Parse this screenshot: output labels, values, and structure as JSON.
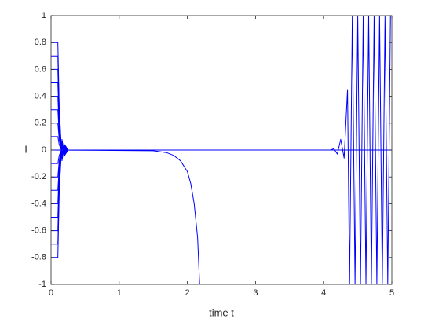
{
  "chart_data": {
    "type": "line",
    "x_label": "time t",
    "y_label": "I",
    "xlim": [
      0,
      5
    ],
    "ylim": [
      -1,
      1
    ],
    "xticks": [
      0,
      1,
      2,
      3,
      4,
      5
    ],
    "yticks": [
      -1,
      -0.8,
      -0.6,
      -0.4,
      -0.2,
      0,
      0.2,
      0.4,
      0.6,
      0.8,
      1
    ],
    "grid": false,
    "series": [
      {
        "color": "#0000ff",
        "x": [
          0,
          0.1,
          0.12,
          0.16,
          0.2,
          0.25,
          5
        ],
        "values": [
          0.8,
          0.8,
          0.32,
          -0.08,
          0.04,
          0,
          0
        ]
      },
      {
        "color": "#0000ff",
        "x": [
          0,
          0.1,
          0.12,
          0.16,
          0.2,
          0.25,
          5
        ],
        "values": [
          0.7,
          0.7,
          0.28,
          -0.07,
          0.035,
          0,
          0
        ]
      },
      {
        "color": "#0000ff",
        "x": [
          0,
          0.1,
          0.12,
          0.16,
          0.2,
          0.25,
          5
        ],
        "values": [
          0.6,
          0.6,
          0.24,
          -0.06,
          0.03,
          0,
          0
        ]
      },
      {
        "color": "#0000ff",
        "x": [
          0,
          0.1,
          0.12,
          0.16,
          0.2,
          0.25,
          5
        ],
        "values": [
          0.5,
          0.5,
          0.2,
          -0.05,
          0.025,
          0,
          0
        ]
      },
      {
        "color": "#0000ff",
        "x": [
          0,
          0.1,
          0.12,
          0.16,
          0.2,
          0.25,
          5
        ],
        "values": [
          0.4,
          0.4,
          0.16,
          -0.04,
          0.02,
          0,
          0
        ]
      },
      {
        "color": "#0000ff",
        "x": [
          0,
          0.1,
          0.12,
          0.16,
          0.2,
          0.25,
          5
        ],
        "values": [
          0.3,
          0.3,
          0.12,
          -0.03,
          0.015,
          0,
          0
        ]
      },
      {
        "color": "#0000ff",
        "x": [
          0,
          0.1,
          0.12,
          0.16,
          0.2,
          0.25,
          5
        ],
        "values": [
          0.2,
          0.2,
          0.08,
          -0.02,
          0.01,
          0,
          0
        ]
      },
      {
        "color": "#0000ff",
        "x": [
          0,
          0.1,
          0.12,
          0.16,
          0.2,
          0.25,
          5
        ],
        "values": [
          0.1,
          0.1,
          0.04,
          -0.01,
          0.005,
          0,
          0
        ]
      },
      {
        "color": "#0000ff",
        "x": [
          0,
          0.1,
          0.12,
          0.16,
          0.2,
          0.25,
          5
        ],
        "values": [
          -0.1,
          -0.1,
          -0.04,
          0.01,
          -0.005,
          0,
          0
        ]
      },
      {
        "color": "#0000ff",
        "x": [
          0,
          0.1,
          0.12,
          0.16,
          0.2,
          0.25,
          5
        ],
        "values": [
          -0.2,
          -0.2,
          -0.08,
          0.02,
          -0.01,
          0,
          0
        ]
      },
      {
        "color": "#0000ff",
        "x": [
          0,
          0.1,
          0.12,
          0.16,
          0.2,
          0.25,
          5
        ],
        "values": [
          -0.3,
          -0.3,
          -0.12,
          0.03,
          -0.015,
          0,
          0
        ]
      },
      {
        "color": "#0000ff",
        "x": [
          0,
          0.1,
          0.12,
          0.16,
          0.2,
          0.25,
          5
        ],
        "values": [
          -0.4,
          -0.4,
          -0.16,
          0.04,
          -0.02,
          0,
          0
        ]
      },
      {
        "color": "#0000ff",
        "x": [
          0,
          0.1,
          0.12,
          0.16,
          0.2,
          0.25,
          5
        ],
        "values": [
          -0.5,
          -0.5,
          -0.2,
          0.05,
          -0.025,
          0,
          0
        ]
      },
      {
        "color": "#0000ff",
        "x": [
          0,
          0.1,
          0.12,
          0.16,
          0.2,
          0.25,
          5
        ],
        "values": [
          -0.6,
          -0.6,
          -0.24,
          0.06,
          -0.03,
          0,
          0
        ]
      },
      {
        "color": "#0000ff",
        "x": [
          0,
          0.1,
          0.12,
          0.16,
          0.2,
          0.25,
          5
        ],
        "values": [
          -0.7,
          -0.7,
          -0.28,
          0.07,
          -0.035,
          0,
          0
        ]
      },
      {
        "color": "#0000ff",
        "x": [
          0,
          0.1,
          0.12,
          0.16,
          0.2,
          0.25,
          5
        ],
        "values": [
          -0.8,
          -0.8,
          -0.32,
          0.08,
          -0.04,
          0,
          0
        ]
      },
      {
        "color": "#0000ff",
        "x": [
          0,
          1.5,
          1.7,
          1.8,
          1.9,
          2.0,
          2.05,
          2.1,
          2.15,
          2.18
        ],
        "values": [
          0,
          -0.005,
          -0.02,
          -0.04,
          -0.08,
          -0.16,
          -0.25,
          -0.4,
          -0.65,
          -1
        ]
      },
      {
        "color": "#0000ff",
        "x": [
          0,
          4.1,
          4.15,
          4.2,
          4.25,
          4.3,
          4.35,
          4.38,
          4.42,
          4.46,
          4.5,
          4.54,
          4.58,
          4.62,
          4.66,
          4.7,
          4.74,
          4.78,
          4.82,
          4.86,
          4.9,
          4.94,
          4.98
        ],
        "values": [
          0,
          0,
          0.01,
          -0.03,
          0.08,
          -0.06,
          0.45,
          -1,
          1,
          -1,
          1,
          -1,
          1,
          -1,
          1,
          -1,
          1,
          -1,
          1,
          -1,
          1,
          -1,
          1
        ]
      }
    ]
  }
}
